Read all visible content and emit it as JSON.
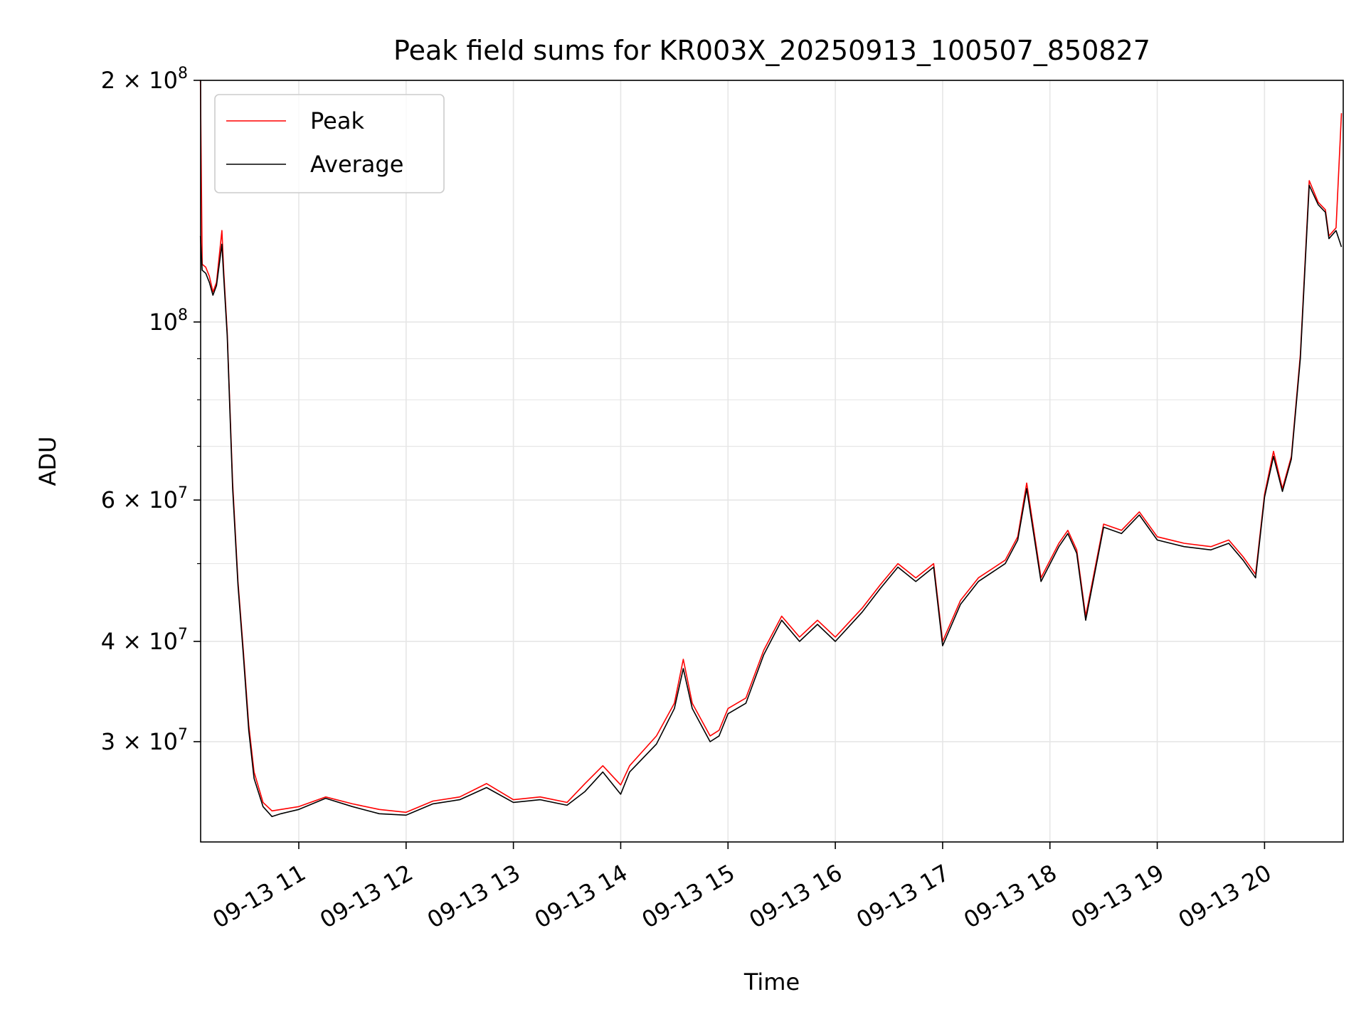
{
  "chart_data": {
    "type": "line",
    "title": "Peak field sums for KR003X_20250913_100507_850827",
    "xlabel": "Time",
    "ylabel": "ADU",
    "y_scale": "log",
    "ylim": [
      22500000,
      200000000
    ],
    "xlim": [
      "2025-09-13 10:05:07",
      "2025-09-13 20:44:00"
    ],
    "x_ticks": [
      "09-13 11",
      "09-13 12",
      "09-13 13",
      "09-13 14",
      "09-13 15",
      "09-13 16",
      "09-13 17",
      "09-13 18",
      "09-13 19",
      "09-13 20"
    ],
    "x_tick_hours": [
      "2025-09-13 11:00",
      "2025-09-13 12:00",
      "2025-09-13 13:00",
      "2025-09-13 14:00",
      "2025-09-13 15:00",
      "2025-09-13 16:00",
      "2025-09-13 17:00",
      "2025-09-13 18:00",
      "2025-09-13 19:00",
      "2025-09-13 20:00"
    ],
    "y_ticks": [
      {
        "value": 200000000,
        "mantissa": "2",
        "base": "10",
        "exp": "8"
      },
      {
        "value": 100000000,
        "mantissa": "",
        "base": "10",
        "exp": "8"
      },
      {
        "value": 60000000,
        "mantissa": "6",
        "base": "10",
        "exp": "7"
      },
      {
        "value": 40000000,
        "mantissa": "4",
        "base": "10",
        "exp": "7"
      },
      {
        "value": 30000000,
        "mantissa": "3",
        "base": "10",
        "exp": "7"
      }
    ],
    "grid": true,
    "legend_position": "top-left",
    "colors": {
      "peak": "#ff0000",
      "average": "#000000",
      "grid": "#e6e6e6"
    },
    "x": [
      "2025-09-13 10:05",
      "2025-09-13 10:06",
      "2025-09-13 10:08",
      "2025-09-13 10:10",
      "2025-09-13 10:12",
      "2025-09-13 10:14",
      "2025-09-13 10:17",
      "2025-09-13 10:18",
      "2025-09-13 10:20",
      "2025-09-13 10:23",
      "2025-09-13 10:26",
      "2025-09-13 10:29",
      "2025-09-13 10:32",
      "2025-09-13 10:35",
      "2025-09-13 10:40",
      "2025-09-13 10:45",
      "2025-09-13 10:50",
      "2025-09-13 11:00",
      "2025-09-13 11:15",
      "2025-09-13 11:30",
      "2025-09-13 11:45",
      "2025-09-13 12:00",
      "2025-09-13 12:15",
      "2025-09-13 12:30",
      "2025-09-13 12:45",
      "2025-09-13 13:00",
      "2025-09-13 13:15",
      "2025-09-13 13:30",
      "2025-09-13 13:40",
      "2025-09-13 13:50",
      "2025-09-13 14:00",
      "2025-09-13 14:05",
      "2025-09-13 14:20",
      "2025-09-13 14:30",
      "2025-09-13 14:35",
      "2025-09-13 14:40",
      "2025-09-13 14:50",
      "2025-09-13 14:55",
      "2025-09-13 15:00",
      "2025-09-13 15:10",
      "2025-09-13 15:20",
      "2025-09-13 15:30",
      "2025-09-13 15:40",
      "2025-09-13 15:50",
      "2025-09-13 16:00",
      "2025-09-13 16:15",
      "2025-09-13 16:25",
      "2025-09-13 16:35",
      "2025-09-13 16:45",
      "2025-09-13 16:55",
      "2025-09-13 17:00",
      "2025-09-13 17:10",
      "2025-09-13 17:20",
      "2025-09-13 17:35",
      "2025-09-13 17:42",
      "2025-09-13 17:47",
      "2025-09-13 17:55",
      "2025-09-13 18:05",
      "2025-09-13 18:10",
      "2025-09-13 18:15",
      "2025-09-13 18:20",
      "2025-09-13 18:30",
      "2025-09-13 18:40",
      "2025-09-13 18:50",
      "2025-09-13 19:00",
      "2025-09-13 19:15",
      "2025-09-13 19:30",
      "2025-09-13 19:40",
      "2025-09-13 19:48",
      "2025-09-13 19:55",
      "2025-09-13 20:00",
      "2025-09-13 20:05",
      "2025-09-13 20:10",
      "2025-09-13 20:15",
      "2025-09-13 20:20",
      "2025-09-13 20:25",
      "2025-09-13 20:30",
      "2025-09-13 20:34",
      "2025-09-13 20:36",
      "2025-09-13 20:40",
      "2025-09-13 20:43"
    ],
    "series": [
      {
        "name": "Peak",
        "color": "#ff0000",
        "values": [
          200000000,
          118000000,
          117000000,
          114000000,
          109000000,
          112000000,
          130000000,
          116000000,
          97000000,
          63000000,
          47500000,
          39000000,
          31500000,
          27500000,
          25200000,
          24600000,
          24700000,
          24900000,
          25600000,
          25100000,
          24700000,
          24500000,
          25300000,
          25600000,
          26600000,
          25400000,
          25600000,
          25200000,
          26600000,
          28000000,
          26500000,
          28000000,
          30500000,
          33500000,
          38000000,
          33500000,
          30500000,
          31000000,
          33000000,
          34000000,
          39000000,
          43000000,
          40500000,
          42500000,
          40500000,
          44000000,
          47000000,
          50000000,
          48000000,
          50000000,
          40000000,
          45000000,
          48000000,
          50500000,
          54000000,
          63000000,
          48000000,
          53000000,
          55000000,
          52000000,
          43000000,
          56000000,
          55000000,
          58000000,
          54000000,
          53000000,
          52500000,
          53500000,
          51000000,
          48500000,
          61000000,
          69000000,
          62000000,
          68000000,
          91000000,
          150000000,
          141000000,
          138000000,
          128000000,
          131000000,
          182000000
        ]
      },
      {
        "name": "Average",
        "color": "#000000",
        "values": [
          128000000,
          116000000,
          115000000,
          112000000,
          108000000,
          111000000,
          125000000,
          114000000,
          96000000,
          62000000,
          47000000,
          38500000,
          31000000,
          27000000,
          24900000,
          24200000,
          24400000,
          24700000,
          25500000,
          24900000,
          24400000,
          24300000,
          25100000,
          25400000,
          26300000,
          25200000,
          25400000,
          25000000,
          26000000,
          27500000,
          25800000,
          27500000,
          29800000,
          33000000,
          37000000,
          33000000,
          30000000,
          30500000,
          32500000,
          33500000,
          38500000,
          42500000,
          40000000,
          42000000,
          40000000,
          43500000,
          46500000,
          49500000,
          47500000,
          49500000,
          39500000,
          44500000,
          47500000,
          50000000,
          53500000,
          62000000,
          47500000,
          52500000,
          54500000,
          51500000,
          42500000,
          55500000,
          54500000,
          57500000,
          53500000,
          52500000,
          52000000,
          53000000,
          50500000,
          48000000,
          60500000,
          68000000,
          61500000,
          67500000,
          90000000,
          148000000,
          140000000,
          137000000,
          127000000,
          130000000,
          124000000
        ]
      }
    ]
  }
}
